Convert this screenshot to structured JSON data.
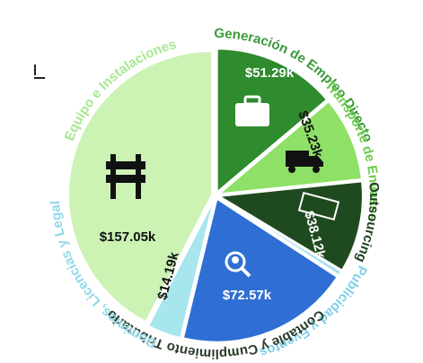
{
  "chart_data": {
    "type": "pie",
    "categories": [
      "Generación de Empleo Directo",
      "Transporte de Envases",
      "Outsourcing",
      "Publicidad y Eventos",
      "Contable y Cumplimiento Tributario",
      "Dominios, Licencias y Legal",
      "Equipo e Instalaciones"
    ],
    "values": [
      51.29,
      35.23,
      38.12,
      2,
      72.57,
      14.19,
      157.05
    ],
    "value_labels": [
      "$51.29k",
      "$35.23k",
      "$38.12k",
      null,
      "$72.57k",
      "$14.19k",
      "$157.05k"
    ],
    "colors": [
      "#2e8b2e",
      "#8ee066",
      "#1f4a1f",
      "#a9e2f2",
      "#2f6fd3",
      "#a8e6ee",
      "#ccf2b4"
    ],
    "label_colors": [
      "#3a9a3a",
      "#6ccc4a",
      "#1f3f1f",
      "#7fd0ea",
      "#2a3a2a",
      "#8fd8ea",
      "#a8e890"
    ]
  }
}
